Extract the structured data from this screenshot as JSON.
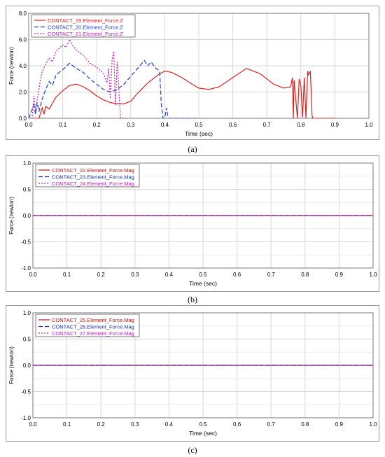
{
  "captions": [
    "(a)",
    "(b)",
    "(c)"
  ],
  "chart_data": [
    {
      "type": "line",
      "xlabel": "Time (sec)",
      "ylabel": "Force (newton)",
      "xlim": [
        0,
        1.0
      ],
      "ylim": [
        0,
        8.0
      ],
      "xticks": [
        "0.0",
        "0.1",
        "0.2",
        "0.3",
        "0.4",
        "0.5",
        "0.6",
        "0.7",
        "0.8",
        "0.9",
        "1.0"
      ],
      "yticks": [
        "0.0",
        "2.0",
        "4.0",
        "6.0",
        "8.0"
      ],
      "grid": true,
      "legend_position": "top-left",
      "series": [
        {
          "name": "CONTACT_19.Element_Force.Z",
          "color": "#e02020",
          "dash": "solid",
          "x": [
            0.0,
            0.03,
            0.04,
            0.045,
            0.05,
            0.06,
            0.08,
            0.1,
            0.12,
            0.14,
            0.16,
            0.18,
            0.2,
            0.22,
            0.24,
            0.26,
            0.28,
            0.3,
            0.32,
            0.35,
            0.38,
            0.4,
            0.42,
            0.45,
            0.48,
            0.5,
            0.53,
            0.56,
            0.6,
            0.64,
            0.68,
            0.72,
            0.75,
            0.77,
            0.775,
            0.778,
            0.78,
            0.79,
            0.795,
            0.8,
            0.805,
            0.81,
            0.815,
            0.82,
            0.823,
            0.828,
            0.833,
            0.835,
            0.84,
            0.9
          ],
          "y": [
            0,
            0,
            0.8,
            0.3,
            0.9,
            0.7,
            1.6,
            2.1,
            2.5,
            2.6,
            2.4,
            2.1,
            1.7,
            1.4,
            1.2,
            1.1,
            1.1,
            1.3,
            1.9,
            2.7,
            3.3,
            3.6,
            3.5,
            3.1,
            2.6,
            2.3,
            2.2,
            2.4,
            3.1,
            3.8,
            3.4,
            2.6,
            2.3,
            2.4,
            3.1,
            0,
            2.9,
            0,
            3.0,
            2.5,
            0.1,
            3.1,
            0,
            3.6,
            3.3,
            3.6,
            0.2,
            0,
            0,
            0
          ]
        },
        {
          "name": "CONTACT_20.Element_Force.Z",
          "color": "#1f3fd0",
          "dash": "6,3",
          "x": [
            0.0,
            0.015,
            0.02,
            0.025,
            0.03,
            0.04,
            0.05,
            0.06,
            0.07,
            0.08,
            0.1,
            0.12,
            0.14,
            0.16,
            0.18,
            0.2,
            0.22,
            0.24,
            0.26,
            0.28,
            0.3,
            0.32,
            0.33,
            0.34,
            0.35,
            0.36,
            0.37,
            0.38,
            0.385,
            0.39,
            0.395,
            0.4,
            0.405,
            0.41,
            0.42,
            0.5
          ],
          "y": [
            0,
            1.0,
            0.3,
            1.2,
            0.5,
            1.5,
            2.2,
            2.8,
            2.5,
            3.3,
            3.7,
            4.2,
            3.8,
            3.5,
            3.0,
            2.6,
            2.2,
            2.0,
            2.2,
            2.6,
            3.2,
            3.8,
            4.1,
            4.4,
            4.0,
            4.3,
            3.9,
            3.7,
            3.6,
            1.0,
            0,
            0,
            0.8,
            0,
            0,
            0
          ]
        },
        {
          "name": "CONTACT_21.Element_Force.Z",
          "color": "#c020c0",
          "dash": "2,2",
          "x": [
            0.0,
            0.01,
            0.015,
            0.02,
            0.025,
            0.03,
            0.035,
            0.04,
            0.05,
            0.06,
            0.07,
            0.08,
            0.1,
            0.11,
            0.12,
            0.13,
            0.14,
            0.16,
            0.18,
            0.2,
            0.22,
            0.23,
            0.235,
            0.24,
            0.245,
            0.25,
            0.255,
            0.26,
            0.27,
            0.28,
            0.29
          ],
          "y": [
            0,
            0,
            1.7,
            0.6,
            1.4,
            2.2,
            3.0,
            3.6,
            4.1,
            4.6,
            4.3,
            5.1,
            5.6,
            5.4,
            6.0,
            5.5,
            5.2,
            4.8,
            4.2,
            3.9,
            3.4,
            2.7,
            3.8,
            1.5,
            4.5,
            5.1,
            1.0,
            4.3,
            0,
            0,
            0
          ]
        }
      ]
    },
    {
      "type": "line",
      "xlabel": "Time (sec)",
      "ylabel": "Force (newton)",
      "xlim": [
        0,
        1.0
      ],
      "ylim": [
        -1.0,
        1.0
      ],
      "xticks": [
        "0.0",
        "0.1",
        "0.2",
        "0.3",
        "0.4",
        "0.5",
        "0.6",
        "0.7",
        "0.8",
        "0.9",
        "1.0"
      ],
      "yticks": [
        "1.0",
        "0.5",
        "0.0",
        "-0.5",
        "-1.0"
      ],
      "grid": true,
      "legend_position": "top-left",
      "series": [
        {
          "name": "CONTACT_22.Element_Force.Mag",
          "color": "#b01818",
          "dash": "solid",
          "x": [
            0,
            1.0
          ],
          "y": [
            0,
            0
          ]
        },
        {
          "name": "CONTACT_23.Element_Force.Mag",
          "color": "#1f2fa0",
          "dash": "6,3",
          "x": [
            0,
            1.0
          ],
          "y": [
            0,
            0
          ]
        },
        {
          "name": "CONTACT_24.Element_Force.Mag",
          "color": "#c020c0",
          "dash": "2,2",
          "x": [
            0,
            1.0
          ],
          "y": [
            0,
            0
          ]
        }
      ]
    },
    {
      "type": "line",
      "xlabel": "Time (sec)",
      "ylabel": "Force (newton)",
      "xlim": [
        0,
        1.0
      ],
      "ylim": [
        -1.0,
        1.0
      ],
      "xticks": [
        "0.0",
        "0.1",
        "0.2",
        "0.3",
        "0.4",
        "0.5",
        "0.6",
        "0.7",
        "0.8",
        "0.9",
        "1.0"
      ],
      "yticks": [
        "1.0",
        "0.5",
        "0.0",
        "-0.5",
        "-1.0"
      ],
      "grid": true,
      "legend_position": "top-left",
      "series": [
        {
          "name": "CONTACT_25.Element_Force.Mag",
          "color": "#b01818",
          "dash": "solid",
          "x": [
            0,
            1.0
          ],
          "y": [
            0,
            0
          ]
        },
        {
          "name": "CONTACT_26.Element_Force.Mag",
          "color": "#1f2fa0",
          "dash": "6,3",
          "x": [
            0,
            1.0
          ],
          "y": [
            0,
            0
          ]
        },
        {
          "name": "CONTACT_27.Element_Force.Mag",
          "color": "#c020c0",
          "dash": "2,2",
          "x": [
            0,
            1.0
          ],
          "y": [
            0,
            0
          ]
        }
      ]
    }
  ]
}
